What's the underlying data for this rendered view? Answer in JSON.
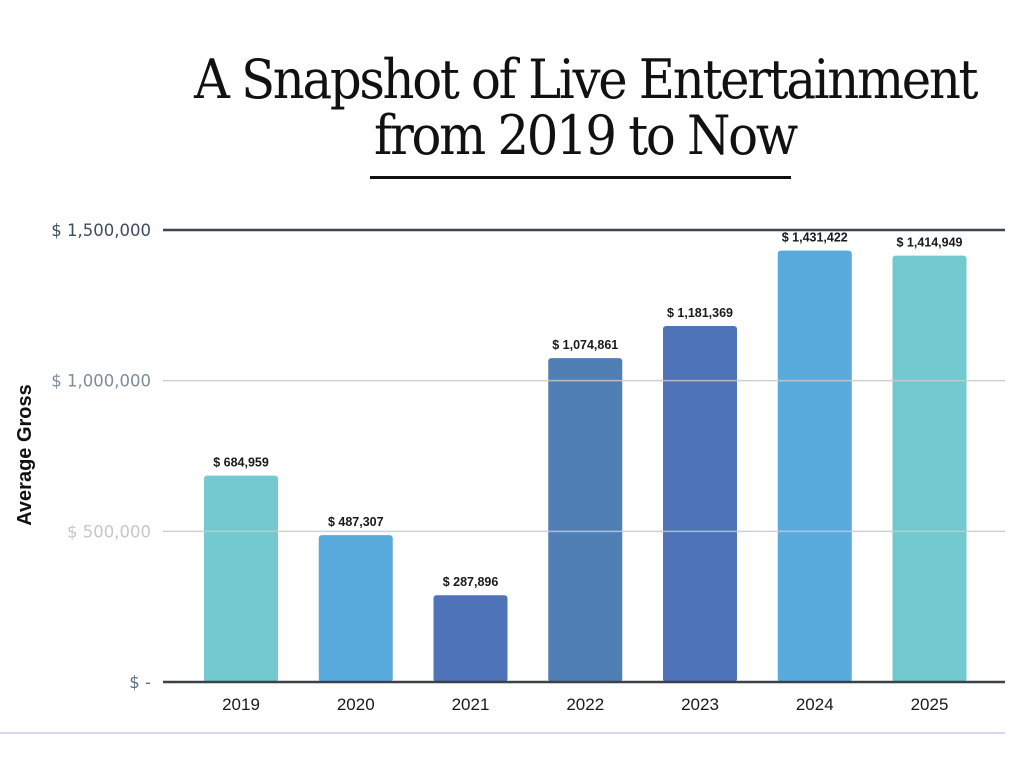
{
  "title": {
    "line1": "A Snapshot of Live Entertainment",
    "line2": "from 2019 to Now"
  },
  "chart_data": {
    "type": "bar",
    "title": "A Snapshot of Live Entertainment from 2019 to Now",
    "xlabel": "",
    "ylabel": "Average Gross",
    "categories": [
      "2019",
      "2020",
      "2021",
      "2022",
      "2023",
      "2024",
      "2025"
    ],
    "values": [
      684959,
      487307,
      287896,
      1074861,
      1181369,
      1431422,
      1414949
    ],
    "data_labels": [
      "$ 684,959",
      "$ 487,307",
      "$ 287,896",
      "$ 1,074,861",
      "$ 1,181,369",
      "$ 1,431,422",
      "$ 1,414,949"
    ],
    "bar_colors": [
      "#72c9cf",
      "#5aabdd",
      "#4e73b8",
      "#4f7fb5",
      "#4e73b8",
      "#5aabdd",
      "#72c9cf"
    ],
    "ylim": [
      0,
      1500000
    ],
    "yticks": [
      {
        "value": 0,
        "label": "$ -",
        "color": "#5f6f7f"
      },
      {
        "value": 500000,
        "label": "$ 500,000",
        "color": "#c4c8cc"
      },
      {
        "value": 1000000,
        "label": "$ 1,000,000",
        "color": "#7d8c99"
      },
      {
        "value": 1500000,
        "label": "$ 1,500,000",
        "color": "#3f4d5c"
      }
    ],
    "gridlines": [
      {
        "value": 0,
        "color": "#3b4148"
      },
      {
        "value": 500000,
        "color": "#c9c9c9"
      },
      {
        "value": 1000000,
        "color": "#c9c9c9"
      },
      {
        "value": 1500000,
        "color": "#3b4550"
      }
    ],
    "grid": true,
    "legend": "none"
  }
}
